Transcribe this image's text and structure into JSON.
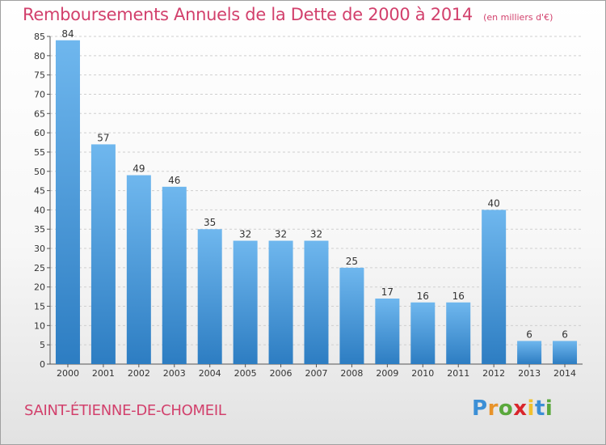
{
  "header": {
    "title": "Remboursements Annuels de la Dette de 2000 à 2014",
    "subtitle": "(en milliers d'€)"
  },
  "footer": {
    "commune": "SAINT-ÉTIENNE-DE-CHOMEIL",
    "logo_letters": [
      "P",
      "r",
      "o",
      "x",
      "i",
      "t",
      "i"
    ],
    "logo_colors": [
      "#3b8fd6",
      "#e8932a",
      "#5aa83c",
      "#d9262c",
      "#f1c12e",
      "#3b8fd6",
      "#5aa83c"
    ]
  },
  "colors": {
    "bar_light": "#6fb7ee",
    "bar_dark": "#2d7dc2",
    "grid": "#cfcfcf",
    "axis": "#555555"
  },
  "chart_data": {
    "type": "bar",
    "title": "Remboursements Annuels de la Dette de 2000 à 2014",
    "subtitle": "(en milliers d'€)",
    "categories": [
      "2000",
      "2001",
      "2002",
      "2003",
      "2004",
      "2005",
      "2006",
      "2007",
      "2008",
      "2009",
      "2010",
      "2011",
      "2012",
      "2013",
      "2014"
    ],
    "values": [
      84,
      57,
      49,
      46,
      35,
      32,
      32,
      32,
      25,
      17,
      16,
      16,
      40,
      6,
      6
    ],
    "ylim": [
      0,
      85
    ],
    "yticks": [
      0,
      5,
      10,
      15,
      20,
      25,
      30,
      35,
      40,
      45,
      50,
      55,
      60,
      65,
      70,
      75,
      80,
      85
    ],
    "grid": true,
    "xlabel": "",
    "ylabel": ""
  }
}
